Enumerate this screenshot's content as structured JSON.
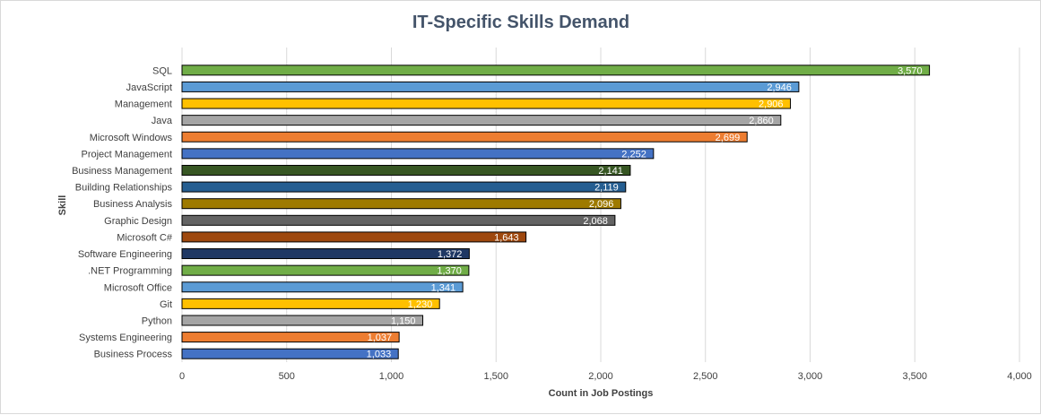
{
  "chart_data": {
    "type": "bar",
    "orientation": "horizontal",
    "title": "IT-Specific Skills Demand",
    "xlabel": "Count in Job Postings",
    "ylabel": "Skill",
    "xlim": [
      0,
      4000
    ],
    "x_ticks": [
      0,
      500,
      1000,
      1500,
      2000,
      2500,
      3000,
      3500,
      4000
    ],
    "x_tick_labels": [
      "0",
      "500",
      "1,000",
      "1,500",
      "2,000",
      "2,500",
      "3,000",
      "3,500",
      "4,000"
    ],
    "grid": "vertical",
    "legend": "none",
    "categories": [
      "SQL",
      "JavaScript",
      "Management",
      "Java",
      "Microsoft Windows",
      "Project Management",
      "Business Management",
      "Building Relationships",
      "Business Analysis",
      "Graphic Design",
      "Microsoft C#",
      "Software Engineering",
      ".NET Programming",
      "Microsoft Office",
      "Git",
      "Python",
      "Systems Engineering",
      "Business Process"
    ],
    "values": [
      3570,
      2946,
      2906,
      2860,
      2699,
      2252,
      2141,
      2119,
      2096,
      2068,
      1643,
      1372,
      1370,
      1341,
      1230,
      1150,
      1037,
      1033
    ],
    "value_labels": [
      "3,570",
      "2,946",
      "2,906",
      "2,860",
      "2,699",
      "2,252",
      "2,141",
      "2,119",
      "2,096",
      "2,068",
      "1,643",
      "1,372",
      "1,370",
      "1,341",
      "1,230",
      "1,150",
      "1,037",
      "1,033"
    ],
    "colors": [
      "#70ad47",
      "#5b9bd5",
      "#ffc000",
      "#a5a5a5",
      "#ed7d31",
      "#4472c4",
      "#375623",
      "#255e91",
      "#9e7a00",
      "#636363",
      "#9e480e",
      "#1f3864",
      "#70ad47",
      "#5b9bd5",
      "#ffc000",
      "#a5a5a5",
      "#ed7d31",
      "#4472c4"
    ]
  }
}
